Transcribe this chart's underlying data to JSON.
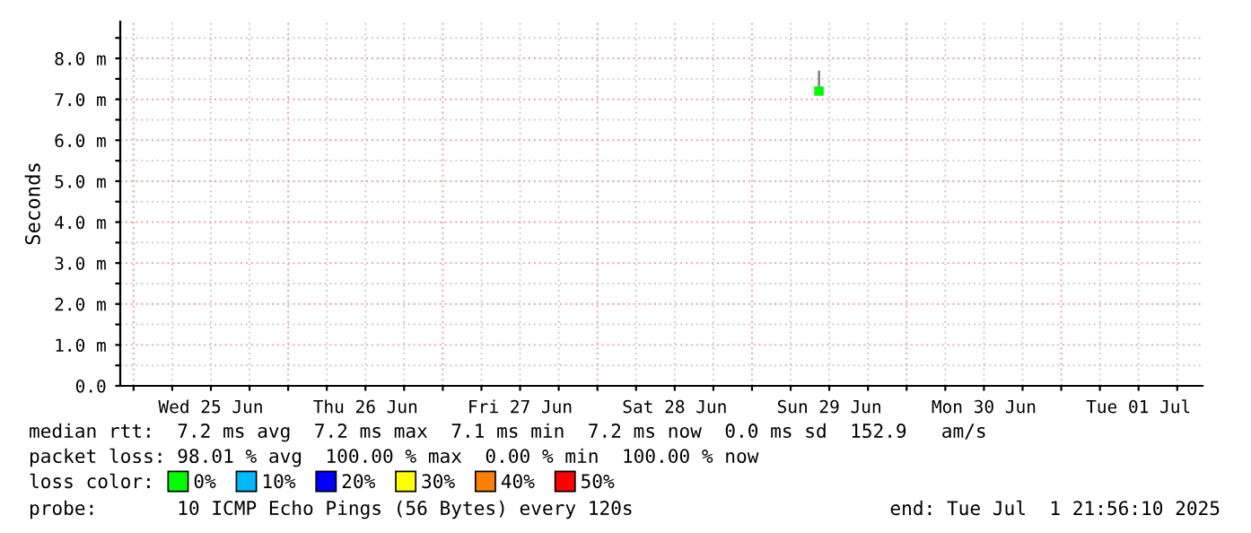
{
  "chart_data": {
    "type": "scatter",
    "ylabel": "Seconds",
    "legend_title": "loss color:",
    "x": [
      "2025-06-29T10:24"
    ],
    "series": [
      {
        "name": "0%",
        "color": "#00ff00",
        "values": [
          7.2
        ],
        "errors": [
          [
            7.2,
            7.7
          ]
        ]
      },
      {
        "name": "10%",
        "color": "#00b8ff",
        "values": [
          null
        ]
      },
      {
        "name": "20%",
        "color": "#0000ff",
        "values": [
          null
        ]
      },
      {
        "name": "30%",
        "color": "#ffff00",
        "values": [
          null
        ]
      },
      {
        "name": "40%",
        "color": "#ff8000",
        "values": [
          null
        ]
      },
      {
        "name": "50%",
        "color": "#ff0000",
        "values": [
          null
        ]
      }
    ],
    "marker": "square",
    "legend": "bottom",
    "grid": true,
    "xlim": [
      "2025-06-24T21:56",
      "2025-07-01T21:56"
    ],
    "xticks": [
      {
        "value": "2025-06-25T00:00",
        "label": null
      },
      {
        "value": "2025-06-25T06:00",
        "label": null
      },
      {
        "value": "2025-06-25T12:00",
        "label": "Wed 25 Jun"
      },
      {
        "value": "2025-06-25T18:00",
        "label": null
      },
      {
        "value": "2025-06-26T00:00",
        "label": null
      },
      {
        "value": "2025-06-26T06:00",
        "label": null
      },
      {
        "value": "2025-06-26T12:00",
        "label": "Thu 26 Jun"
      },
      {
        "value": "2025-06-26T18:00",
        "label": null
      },
      {
        "value": "2025-06-27T00:00",
        "label": null
      },
      {
        "value": "2025-06-27T06:00",
        "label": null
      },
      {
        "value": "2025-06-27T12:00",
        "label": "Fri 27 Jun"
      },
      {
        "value": "2025-06-27T18:00",
        "label": null
      },
      {
        "value": "2025-06-28T00:00",
        "label": null
      },
      {
        "value": "2025-06-28T06:00",
        "label": null
      },
      {
        "value": "2025-06-28T12:00",
        "label": "Sat 28 Jun"
      },
      {
        "value": "2025-06-28T18:00",
        "label": null
      },
      {
        "value": "2025-06-29T00:00",
        "label": null
      },
      {
        "value": "2025-06-29T06:00",
        "label": null
      },
      {
        "value": "2025-06-29T12:00",
        "label": "Sun 29 Jun"
      },
      {
        "value": "2025-06-29T18:00",
        "label": null
      },
      {
        "value": "2025-06-30T00:00",
        "label": null
      },
      {
        "value": "2025-06-30T06:00",
        "label": null
      },
      {
        "value": "2025-06-30T12:00",
        "label": "Mon 30 Jun"
      },
      {
        "value": "2025-06-30T18:00",
        "label": null
      },
      {
        "value": "2025-07-01T00:00",
        "label": null
      },
      {
        "value": "2025-07-01T06:00",
        "label": null
      },
      {
        "value": "2025-07-01T12:00",
        "label": "Tue 01 Jul"
      },
      {
        "value": "2025-07-01T18:00",
        "label": null
      }
    ],
    "ylim": [
      0,
      8.9
    ],
    "yticks": [
      {
        "value": 0,
        "label": "0.0"
      },
      {
        "value": 0.5,
        "label": null
      },
      {
        "value": 1,
        "label": "1.0 m"
      },
      {
        "value": 1.5,
        "label": null
      },
      {
        "value": 2,
        "label": "2.0 m"
      },
      {
        "value": 2.5,
        "label": null
      },
      {
        "value": 3,
        "label": "3.0 m"
      },
      {
        "value": 3.5,
        "label": null
      },
      {
        "value": 4,
        "label": "4.0 m"
      },
      {
        "value": 4.5,
        "label": null
      },
      {
        "value": 5,
        "label": "5.0 m"
      },
      {
        "value": 5.5,
        "label": null
      },
      {
        "value": 6,
        "label": "6.0 m"
      },
      {
        "value": 6.5,
        "label": null
      },
      {
        "value": 7,
        "label": "7.0 m"
      },
      {
        "value": 7.5,
        "label": null
      },
      {
        "value": 8,
        "label": "8.0 m"
      },
      {
        "value": 8.5,
        "label": null
      }
    ],
    "annotations": [
      "median rtt:  7.2 ms avg  7.2 ms max  7.1 ms min  7.2 ms now  0.0 ms sd  152.9   am/s",
      "packet loss: 98.01 % avg  100.00 % max  0.00 % min  100.00 % now",
      "probe:       10 ICMP Echo Pings (56 Bytes) every 120s",
      "end: Tue Jul  1 21:56:10 2025"
    ]
  }
}
